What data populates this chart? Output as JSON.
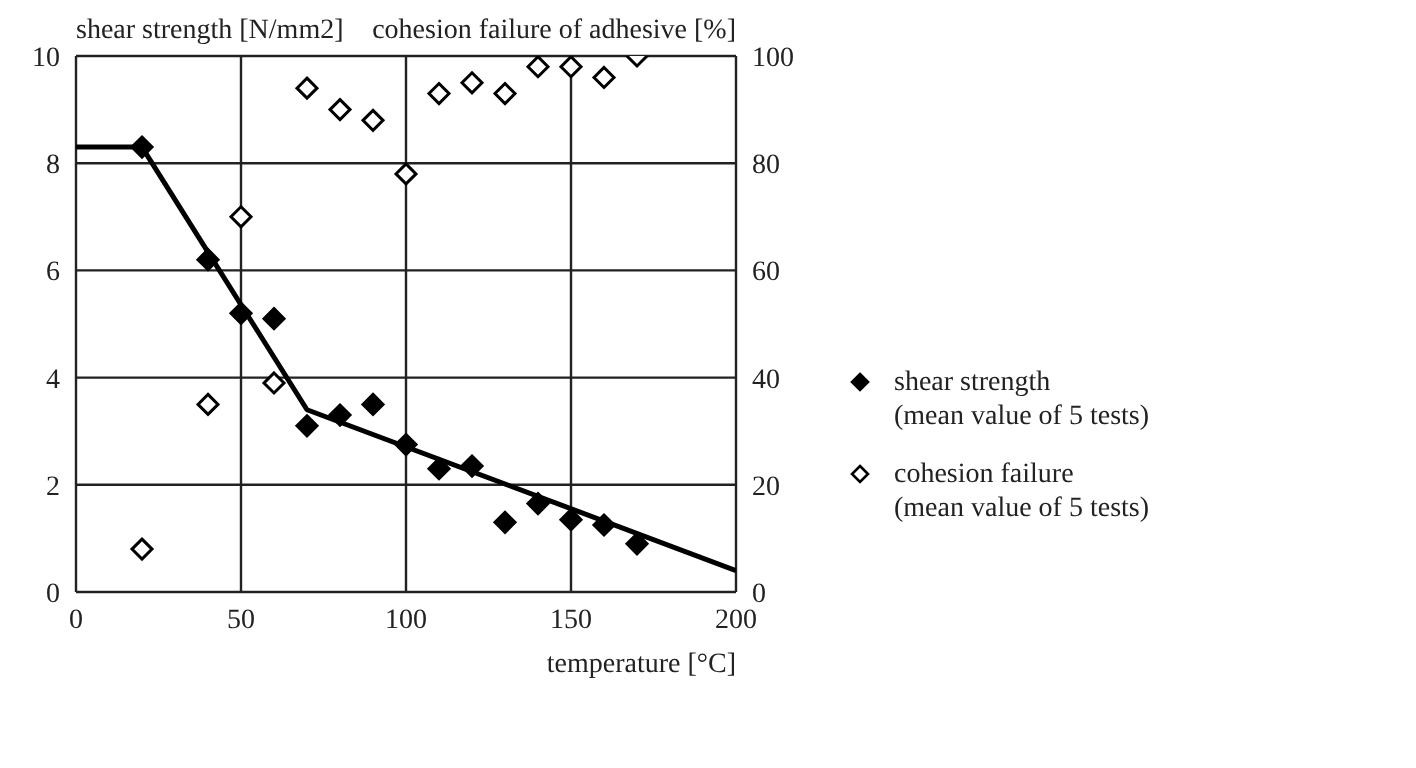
{
  "chart_data": {
    "type": "scatter",
    "xlabel": "temperature [°C]",
    "ylabel": "shear strength [N/mm2]",
    "y2label": "cohesion failure of adhesive [%]",
    "xlim": [
      0,
      200
    ],
    "xticks": [
      0,
      50,
      100,
      150,
      200
    ],
    "ylim": [
      0,
      10
    ],
    "yticks": [
      0,
      2,
      4,
      6,
      8,
      10
    ],
    "y2lim": [
      0,
      100
    ],
    "y2ticks": [
      0,
      20,
      40,
      60,
      80,
      100
    ],
    "grid": true,
    "legend": "right",
    "marker": "diamond",
    "series": [
      {
        "name": "shear strength (mean value of 5 tests)",
        "color": "#000000",
        "x": [
          20,
          40,
          50,
          60,
          70,
          80,
          90,
          100,
          110,
          120,
          130,
          140,
          150,
          160,
          170
        ],
        "values": [
          8.3,
          6.2,
          5.2,
          5.1,
          3.1,
          3.3,
          3.5,
          2.75,
          2.3,
          2.35,
          1.3,
          1.65,
          1.35,
          1.25,
          0.9
        ]
      },
      {
        "name": "cohesion failure (mean value of 5 tests)",
        "color": "#000000",
        "axis": "y2",
        "x": [
          20,
          40,
          50,
          60,
          70,
          80,
          90,
          100,
          110,
          120,
          130,
          140,
          150,
          160,
          170
        ],
        "values": [
          8,
          35,
          70,
          39,
          94,
          90,
          88,
          78,
          93,
          95,
          93,
          98,
          98,
          96,
          100
        ]
      },
      {
        "type": "line",
        "color": "#000000",
        "x": [
          0,
          20,
          70,
          200
        ],
        "values": [
          8.3,
          8.3,
          3.4,
          0.4
        ],
        "marker": "none"
      }
    ]
  }
}
